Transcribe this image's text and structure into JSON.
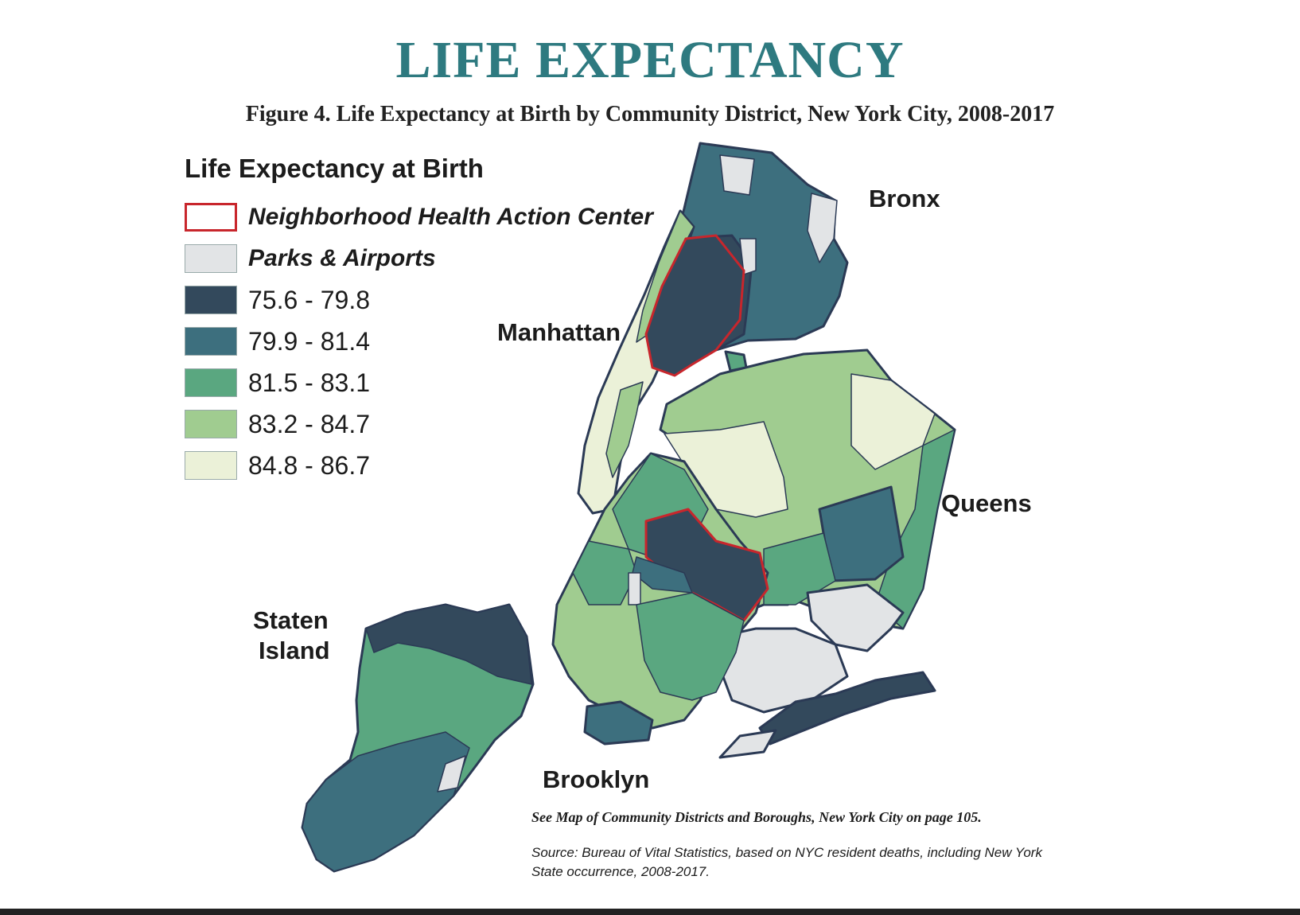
{
  "title": "LIFE EXPECTANCY",
  "figure_caption": "Figure 4. Life Expectancy at Birth by Community District, New York City, 2008-2017",
  "legend": {
    "title": "Life Expectancy at Birth",
    "items": [
      {
        "label": "Neighborhood Health Action Center",
        "fill": "#ffffff",
        "stroke": "#c8262c"
      },
      {
        "label": "Parks & Airports",
        "fill": "#e2e4e6",
        "stroke": "#9aa0a6"
      },
      {
        "label": "75.6 - 79.8",
        "fill": "#33495c",
        "stroke": "#9aa0a6"
      },
      {
        "label": "79.9 - 81.4",
        "fill": "#3d6f7e",
        "stroke": "#9aa0a6"
      },
      {
        "label": "81.5 - 83.1",
        "fill": "#5aa780",
        "stroke": "#9aa0a6"
      },
      {
        "label": "83.2 - 84.7",
        "fill": "#a0cc90",
        "stroke": "#9aa0a6"
      },
      {
        "label": "84.8 - 86.7",
        "fill": "#ebf1d8",
        "stroke": "#9aa0a6"
      }
    ]
  },
  "boroughs": {
    "bronx": "Bronx",
    "manhattan": "Manhattan",
    "queens": "Queens",
    "staten_island_line1": "Staten",
    "staten_island_line2": "Island",
    "brooklyn": "Brooklyn"
  },
  "notes": {
    "see_map": "See Map of Community Districts and Boroughs, New York City on page 105.",
    "source": "Source: Bureau of Vital Statistics, based on NYC resident deaths, including New York State occurrence, 2008-2017."
  },
  "colors": {
    "title": "#2e7a80",
    "outline": "#2b3a55",
    "nhac_outline": "#c8262c"
  }
}
